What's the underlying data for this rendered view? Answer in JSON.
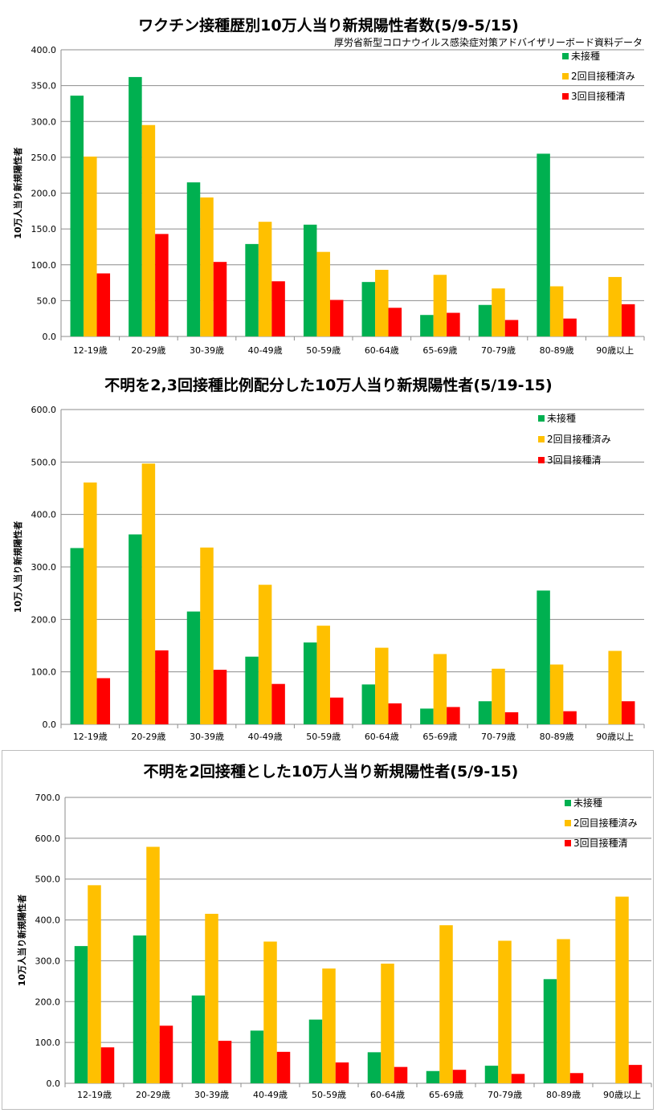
{
  "chart_data": [
    {
      "type": "bar",
      "title": "ワクチン接種歴別10万人当り新規陽性者数(5/9-5/15)",
      "subtitle": "厚労省新型コロナウイルス感染症対策アドバイザリーボード資料データ",
      "ylabel": "10万人当り新規陽性者",
      "ylim": [
        0,
        400
      ],
      "yticks": [
        "0.0",
        "50.0",
        "100.0",
        "150.0",
        "200.0",
        "250.0",
        "300.0",
        "350.0",
        "400.0"
      ],
      "grid": true,
      "legend_position": "top-right",
      "categories": [
        "12-19歳",
        "20-29歳",
        "30-39歳",
        "40-49歳",
        "50-59歳",
        "60-64歳",
        "65-69歳",
        "70-79歳",
        "80-89歳",
        "90歳以上"
      ],
      "series": [
        {
          "name": "未接種",
          "color": "#00b050",
          "values": [
            336,
            362,
            215,
            129,
            156,
            76,
            30,
            44,
            255,
            0
          ]
        },
        {
          "name": "2回目接種済み",
          "color": "#ffc000",
          "values": [
            251,
            295,
            194,
            160,
            118,
            93,
            86,
            67,
            70,
            83
          ]
        },
        {
          "name": "3回目接種清",
          "color": "#ff0000",
          "values": [
            88,
            143,
            104,
            77,
            51,
            40,
            33,
            23,
            25,
            45
          ]
        }
      ]
    },
    {
      "type": "bar",
      "title": "不明を2,3回接種比例配分した10万人当り新規陽性者(5/19-15)",
      "ylabel": "10万人当り新規陽性者",
      "ylim": [
        0,
        600
      ],
      "yticks": [
        "0.0",
        "100.0",
        "200.0",
        "300.0",
        "400.0",
        "500.0",
        "600.0"
      ],
      "grid": true,
      "legend_position": "top-right",
      "categories": [
        "12-19歳",
        "20-29歳",
        "30-39歳",
        "40-49歳",
        "50-59歳",
        "60-64歳",
        "65-69歳",
        "70-79歳",
        "80-89歳",
        "90歳以上"
      ],
      "series": [
        {
          "name": "未接種",
          "color": "#00b050",
          "values": [
            336,
            362,
            215,
            129,
            156,
            76,
            30,
            44,
            255,
            0
          ]
        },
        {
          "name": "2回目接種済み",
          "color": "#ffc000",
          "values": [
            461,
            497,
            337,
            266,
            188,
            146,
            134,
            106,
            114,
            140
          ]
        },
        {
          "name": "3回目接種清",
          "color": "#ff0000",
          "values": [
            88,
            141,
            104,
            77,
            51,
            40,
            33,
            23,
            25,
            44
          ]
        }
      ]
    },
    {
      "type": "bar",
      "title": "不明を2回接種とした10万人当り新規陽性者(5/9-15)",
      "ylabel": "10万人当り新規陽性者",
      "ylim": [
        0,
        700
      ],
      "yticks": [
        "0.0",
        "100.0",
        "200.0",
        "300.0",
        "400.0",
        "500.0",
        "600.0",
        "700.0"
      ],
      "grid": true,
      "legend_position": "top-right",
      "categories": [
        "12-19歳",
        "20-29歳",
        "30-39歳",
        "40-49歳",
        "50-59歳",
        "60-64歳",
        "65-69歳",
        "70-79歳",
        "80-89歳",
        "90歳以上"
      ],
      "series": [
        {
          "name": "未接種",
          "color": "#00b050",
          "values": [
            336,
            362,
            215,
            129,
            156,
            76,
            30,
            43,
            255,
            0
          ]
        },
        {
          "name": "2回目接種済み",
          "color": "#ffc000",
          "values": [
            485,
            579,
            415,
            347,
            281,
            293,
            387,
            349,
            353,
            457
          ]
        },
        {
          "name": "3回目接種清",
          "color": "#ff0000",
          "values": [
            88,
            141,
            104,
            77,
            51,
            40,
            33,
            23,
            25,
            45
          ]
        }
      ]
    }
  ]
}
